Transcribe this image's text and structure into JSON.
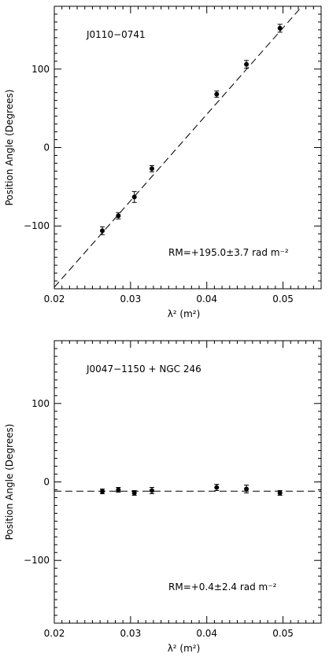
{
  "chart_data": [
    {
      "type": "scatter",
      "annotation_source": "J0110−0741",
      "annotation_rm": "RM=+195.0±3.7 rad m⁻²",
      "xlabel": "λ² (m²)",
      "ylabel": "Position Angle (Degrees)",
      "xlim": [
        0.02,
        0.055
      ],
      "ylim": [
        -180,
        180
      ],
      "xticks": [
        0.02,
        0.03,
        0.04,
        0.05
      ],
      "xtick_labels": [
        "0.02",
        "0.03",
        "0.04",
        "0.05"
      ],
      "yticks": [
        -100,
        0,
        100
      ],
      "ytick_labels": [
        "−100",
        "0",
        "100"
      ],
      "x": [
        0.0263,
        0.0284,
        0.0305,
        0.0328,
        0.0413,
        0.0452,
        0.0496
      ],
      "y": [
        -106,
        -87,
        -63,
        -27,
        68,
        106,
        152
      ],
      "yerr": [
        5,
        4,
        7,
        4,
        4,
        5,
        5
      ],
      "fit": {
        "style": "dashed",
        "x": [
          0.02,
          0.0525
        ],
        "y": [
          -178,
          180
        ]
      }
    },
    {
      "type": "scatter",
      "annotation_source": "J0047−1150 + NGC 246",
      "annotation_rm": "RM=+0.4±2.4 rad m⁻²",
      "xlabel": "λ² (m²)",
      "ylabel": "Position Angle (Degrees)",
      "xlim": [
        0.02,
        0.055
      ],
      "ylim": [
        -180,
        180
      ],
      "xticks": [
        0.02,
        0.03,
        0.04,
        0.05
      ],
      "xtick_labels": [
        "0.02",
        "0.03",
        "0.04",
        "0.05"
      ],
      "yticks": [
        -100,
        0,
        100
      ],
      "ytick_labels": [
        "−100",
        "0",
        "100"
      ],
      "x": [
        0.0263,
        0.0284,
        0.0305,
        0.0328,
        0.0413,
        0.0452,
        0.0496
      ],
      "y": [
        -12,
        -10,
        -14,
        -11,
        -7,
        -9,
        -14
      ],
      "yerr": [
        3,
        3,
        3,
        4,
        4,
        5,
        3
      ],
      "fit": {
        "style": "dashed",
        "x": [
          0.02,
          0.055
        ],
        "y": [
          -11.8,
          -11.8
        ]
      }
    }
  ]
}
